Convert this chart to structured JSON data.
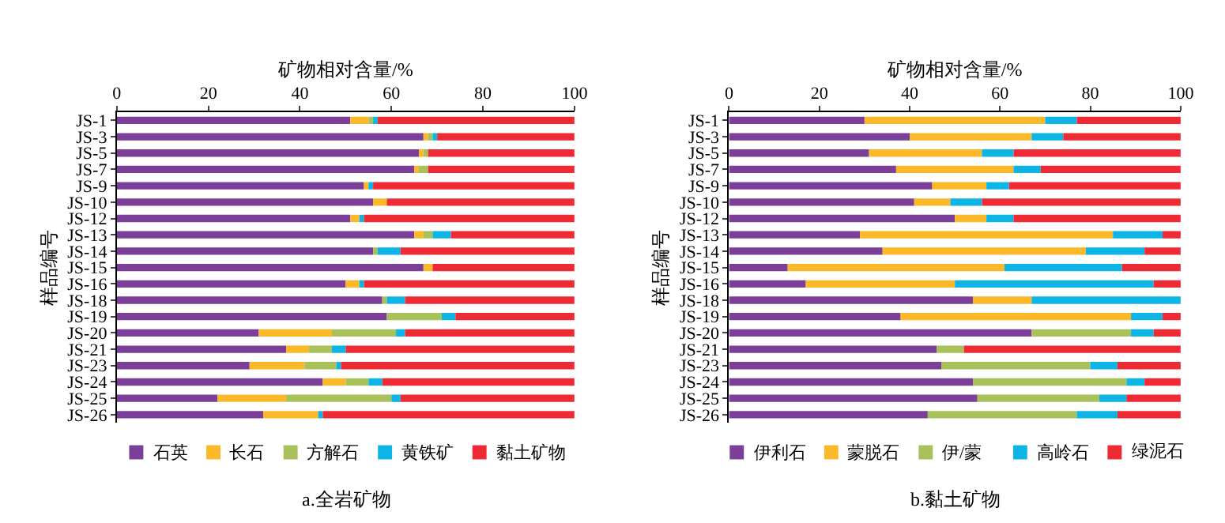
{
  "chart_data": [
    {
      "type": "bar",
      "orientation": "horizontal",
      "stacked": true,
      "title": "a.全岩矿物",
      "xlabel": "矿物相对含量/%",
      "ylabel": "样品编号",
      "categories": [
        "JS-1",
        "JS-3",
        "JS-5",
        "JS-7",
        "JS-9",
        "JS-10",
        "JS-12",
        "JS-13",
        "JS-14",
        "JS-15",
        "JS-16",
        "JS-18",
        "JS-19",
        "JS-20",
        "JS-21",
        "JS-23",
        "JS-24",
        "JS-25",
        "JS-26"
      ],
      "xlim": [
        0,
        100
      ],
      "xticks": [
        0,
        20,
        40,
        60,
        80,
        100
      ],
      "grid": false,
      "legend": "bottom",
      "series": [
        {
          "name": "石英",
          "color": "#7b3f98",
          "values": [
            51,
            67,
            66,
            65,
            54,
            56,
            51,
            65,
            56,
            67,
            50,
            58,
            59,
            31,
            37,
            29,
            45,
            22,
            32
          ]
        },
        {
          "name": "长石",
          "color": "#fbb829",
          "values": [
            4,
            1,
            1,
            1,
            1,
            3,
            2,
            2,
            0,
            2,
            3,
            0,
            0,
            16,
            5,
            12,
            5,
            15,
            12
          ]
        },
        {
          "name": "方解石",
          "color": "#a9c15a",
          "values": [
            1,
            1,
            1,
            2,
            0,
            0,
            0,
            2,
            1,
            0,
            0,
            1,
            12,
            14,
            5,
            7,
            5,
            23,
            0
          ]
        },
        {
          "name": "黄铁矿",
          "color": "#0db5e6",
          "values": [
            1,
            1,
            0,
            0,
            1,
            0,
            1,
            4,
            5,
            0,
            1,
            4,
            3,
            2,
            3,
            1,
            3,
            2,
            1
          ]
        },
        {
          "name": "黏土矿物",
          "color": "#ee2a35",
          "values": [
            43,
            30,
            32,
            32,
            44,
            41,
            46,
            27,
            38,
            31,
            46,
            37,
            26,
            37,
            50,
            51,
            42,
            38,
            55
          ]
        }
      ]
    },
    {
      "type": "bar",
      "orientation": "horizontal",
      "stacked": true,
      "title": "b.黏土矿物",
      "xlabel": "矿物相对含量/%",
      "ylabel": "样品编号",
      "categories": [
        "JS-1",
        "JS-3",
        "JS-5",
        "JS-7",
        "JS-9",
        "JS-10",
        "JS-12",
        "JS-13",
        "JS-14",
        "JS-15",
        "JS-16",
        "JS-18",
        "JS-19",
        "JS-20",
        "JS-21",
        "JS-23",
        "JS-24",
        "JS-25",
        "JS-26"
      ],
      "xlim": [
        0,
        100
      ],
      "xticks": [
        0,
        20,
        40,
        60,
        80,
        100
      ],
      "grid": false,
      "legend": "bottom",
      "series": [
        {
          "name": "伊利石",
          "color": "#7b3f98",
          "values": [
            30,
            40,
            31,
            37,
            45,
            41,
            50,
            29,
            34,
            13,
            17,
            54,
            38,
            67,
            46,
            47,
            54,
            55,
            44
          ]
        },
        {
          "name": "蒙脱石",
          "color": "#fbb829",
          "values": [
            40,
            27,
            25,
            26,
            12,
            8,
            7,
            56,
            45,
            48,
            33,
            13,
            51,
            0,
            0,
            0,
            0,
            0,
            0
          ]
        },
        {
          "name": "伊/蒙",
          "color": "#a9c15a",
          "values": [
            0,
            0,
            0,
            0,
            0,
            0,
            0,
            0,
            0,
            0,
            0,
            0,
            0,
            22,
            6,
            33,
            34,
            27,
            33
          ]
        },
        {
          "name": "高岭石",
          "color": "#0db5e6",
          "values": [
            7,
            7,
            7,
            6,
            5,
            7,
            6,
            11,
            13,
            26,
            44,
            33,
            7,
            5,
            0,
            6,
            4,
            6,
            9
          ]
        },
        {
          "name": "绿泥石",
          "color": "#ee2a35",
          "values": [
            23,
            26,
            37,
            31,
            38,
            44,
            37,
            4,
            8,
            13,
            6,
            0,
            4,
            6,
            48,
            14,
            8,
            12,
            14
          ]
        }
      ]
    }
  ]
}
